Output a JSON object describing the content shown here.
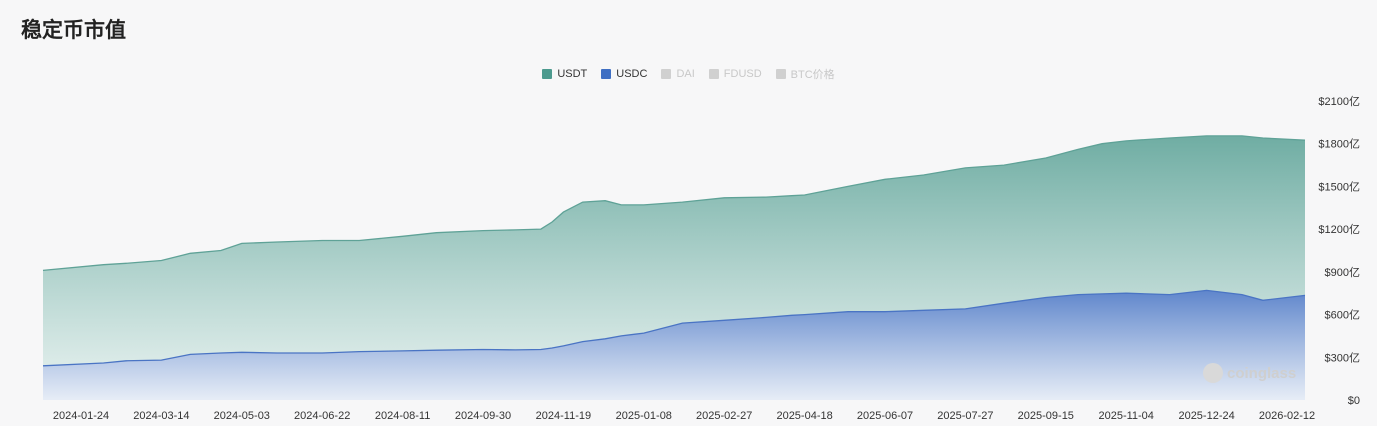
{
  "page": {
    "title": "稳定币市值"
  },
  "legend": [
    {
      "label": "USDT",
      "color": "#4c9a8e",
      "active": true
    },
    {
      "label": "USDC",
      "color": "#3f6fc3",
      "active": true
    },
    {
      "label": "DAI",
      "color": "#d0d0d0",
      "active": false
    },
    {
      "label": "FDUSD",
      "color": "#d0d0d0",
      "active": false
    },
    {
      "label": "BTC价格",
      "color": "#d0d0d0",
      "active": false
    }
  ],
  "watermark": "coinglass",
  "chart_data": {
    "type": "area",
    "title": "稳定币市值",
    "x_labels": [
      "2024-01-24",
      "2024-03-14",
      "2024-05-03",
      "2024-06-22",
      "2024-08-11",
      "2024-09-30",
      "2024-11-19",
      "2025-01-08",
      "2025-02-27",
      "2025-04-18",
      "2025-06-07",
      "2025-07-27",
      "2025-09-15",
      "2025-11-04",
      "2025-12-24",
      "2026-02-12"
    ],
    "y_ticks": [
      "$0",
      "$300亿",
      "$600亿",
      "$900亿",
      "$1200亿",
      "$1500亿",
      "$1800亿",
      "$2100亿"
    ],
    "ylim": [
      0,
      2100
    ],
    "y_unit": "亿 USD",
    "stacked": false,
    "x": [
      "2024-01-24",
      "2024-02-07",
      "2024-02-21",
      "2024-03-14",
      "2024-04-01",
      "2024-04-20",
      "2024-05-03",
      "2024-05-25",
      "2024-06-22",
      "2024-07-15",
      "2024-08-11",
      "2024-09-01",
      "2024-09-30",
      "2024-10-20",
      "2024-11-05",
      "2024-11-12",
      "2024-11-19",
      "2024-12-01",
      "2024-12-15",
      "2024-12-25",
      "2025-01-08",
      "2025-02-01",
      "2025-02-27",
      "2025-03-25",
      "2025-04-10",
      "2025-04-18",
      "2025-05-15",
      "2025-06-07",
      "2025-07-01",
      "2025-07-27",
      "2025-08-20",
      "2025-09-15",
      "2025-10-05",
      "2025-10-20",
      "2025-11-04",
      "2025-12-01",
      "2025-12-24",
      "2026-01-15",
      "2026-01-28",
      "2026-02-12"
    ],
    "series": [
      {
        "name": "USDT",
        "color": "#4c9a8e",
        "values": [
          910,
          950,
          960,
          980,
          1030,
          1050,
          1100,
          1110,
          1120,
          1120,
          1150,
          1175,
          1190,
          1195,
          1200,
          1250,
          1320,
          1390,
          1400,
          1370,
          1370,
          1390,
          1420,
          1425,
          1435,
          1440,
          1500,
          1550,
          1580,
          1630,
          1650,
          1700,
          1760,
          1800,
          1820,
          1840,
          1855,
          1855,
          1840,
          1825
        ]
      },
      {
        "name": "USDC",
        "color": "#3f6fc3",
        "values": [
          240,
          260,
          275,
          280,
          320,
          330,
          335,
          330,
          330,
          340,
          345,
          350,
          355,
          352,
          355,
          365,
          380,
          410,
          430,
          450,
          470,
          540,
          560,
          580,
          595,
          600,
          620,
          620,
          630,
          640,
          680,
          720,
          740,
          745,
          750,
          740,
          770,
          740,
          700,
          735
        ]
      }
    ]
  }
}
